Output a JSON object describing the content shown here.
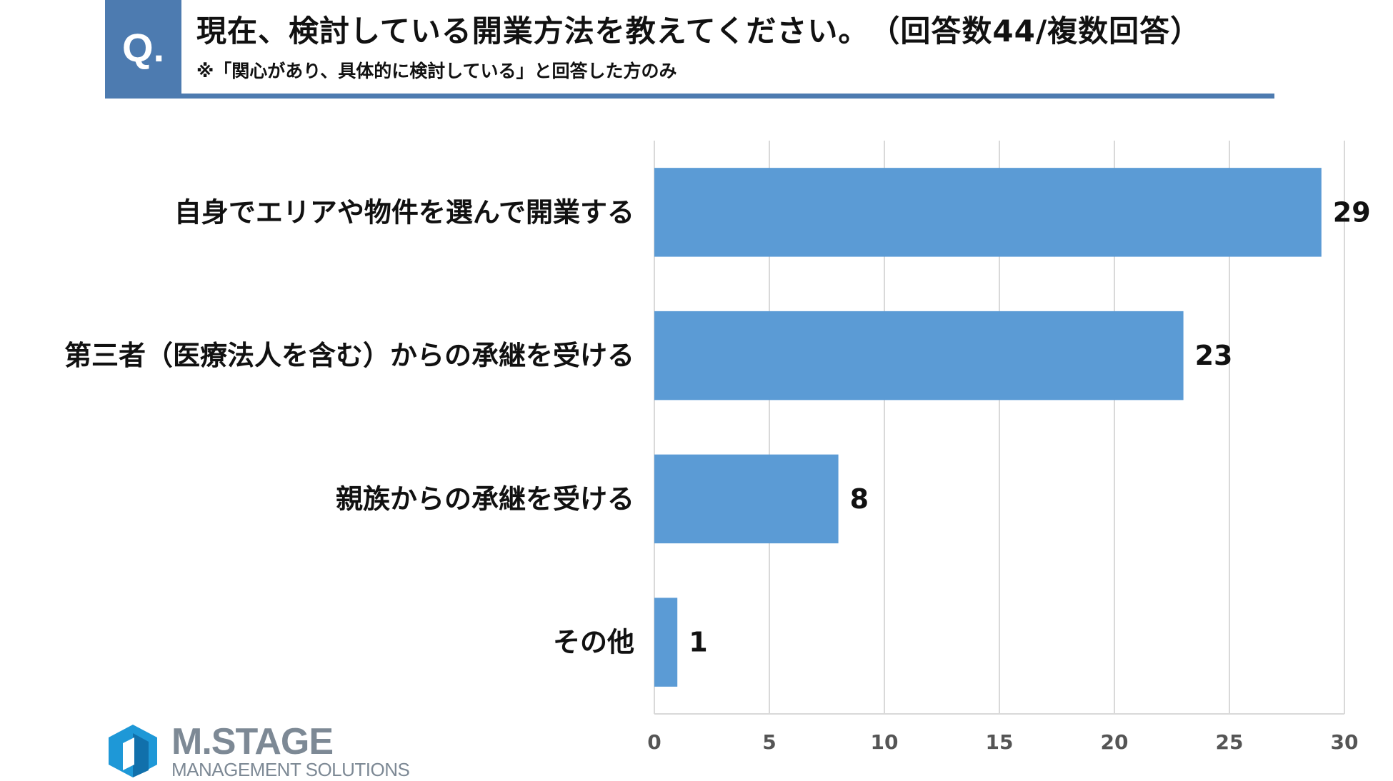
{
  "header": {
    "badge": "Q.",
    "question": "現在、検討している開業方法を教えてください。　（回答数44/複数回答）",
    "note": "※「関心があり、具体的に検討している」と回答した方のみ",
    "accent_color": "#4d7bb0"
  },
  "chart_data": {
    "type": "bar",
    "orientation": "horizontal",
    "categories": [
      "自身でエリアや物件を選んで開業する",
      "第三者（医療法人を含む）からの承継を受ける",
      "親族からの承継を受ける",
      "その他"
    ],
    "values": [
      29,
      23,
      8,
      1
    ],
    "xlim": [
      0,
      30
    ],
    "ticks": [
      0,
      5,
      10,
      15,
      20,
      25,
      30
    ],
    "grid": true,
    "bar_color": "#5b9bd5",
    "data_labels": true
  },
  "logo": {
    "name": "M.STAGE",
    "subtitle": "MANAGEMENT SOLUTIONS",
    "color": "#1e98d7"
  }
}
